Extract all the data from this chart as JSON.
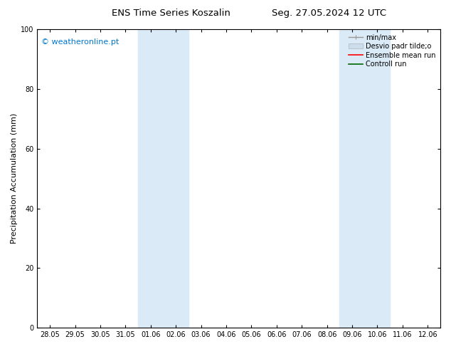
{
  "title_left": "ENS Time Series Koszalin",
  "title_right": "Seg. 27.05.2024 12 UTC",
  "ylabel": "Precipitation Accumulation (mm)",
  "watermark": "© weatheronline.pt",
  "watermark_color": "#0077cc",
  "ylim": [
    0,
    100
  ],
  "yticks": [
    0,
    20,
    40,
    60,
    80,
    100
  ],
  "xtick_labels": [
    "28.05",
    "29.05",
    "30.05",
    "31.05",
    "01.06",
    "02.06",
    "03.06",
    "04.06",
    "05.06",
    "06.06",
    "07.06",
    "08.06",
    "09.06",
    "10.06",
    "11.06",
    "12.06"
  ],
  "background_color": "#ffffff",
  "plot_bg_color": "#ffffff",
  "shaded_regions": [
    {
      "xstart": 4.0,
      "xend": 6.0,
      "color": "#daeaf7"
    },
    {
      "xstart": 12.0,
      "xend": 14.0,
      "color": "#daeaf7"
    }
  ],
  "legend_items": [
    {
      "label": "min/max",
      "color": "#999999",
      "lw": 1.0,
      "style": "line_with_caps"
    },
    {
      "label": "Desvio padr tilde;o",
      "color": "#ccddee",
      "lw": 6,
      "style": "thick"
    },
    {
      "label": "Ensemble mean run",
      "color": "#ff0000",
      "lw": 1.2,
      "style": "line"
    },
    {
      "label": "Controll run",
      "color": "#006600",
      "lw": 1.2,
      "style": "line"
    }
  ],
  "title_fontsize": 9.5,
  "tick_fontsize": 7,
  "ylabel_fontsize": 8,
  "watermark_fontsize": 8,
  "legend_fontsize": 7
}
